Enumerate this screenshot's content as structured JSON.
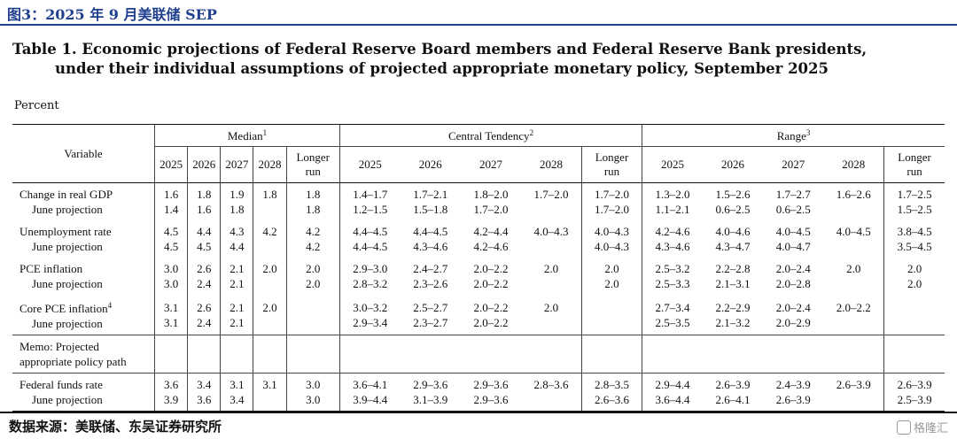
{
  "figure_caption": "图3：2025 年 9 月美联储 SEP",
  "title_line1": "Table 1. Economic projections of Federal Reserve Board members and Federal Reserve Bank presidents,",
  "title_line2": "under their individual assumptions of projected appropriate monetary policy, September 2025",
  "unit_label": "Percent",
  "header": {
    "variable": "Variable",
    "groups": [
      {
        "label": "Median",
        "sup": "1"
      },
      {
        "label": "Central Tendency",
        "sup": "2"
      },
      {
        "label": "Range",
        "sup": "3"
      }
    ],
    "years": [
      "2025",
      "2026",
      "2027",
      "2028"
    ],
    "longer_run_a": "Longer",
    "longer_run_b": "run"
  },
  "rows": [
    {
      "name": "Change in real GDP",
      "sub": "June projection",
      "main_vals": [
        "1.6",
        "1.8",
        "1.9",
        "1.8",
        "1.8",
        "1.4–1.7",
        "1.7–2.1",
        "1.8–2.0",
        "1.7–2.0",
        "1.7–2.0",
        "1.3–2.0",
        "1.5–2.6",
        "1.7–2.7",
        "1.6–2.6",
        "1.7–2.5"
      ],
      "sub_vals": [
        "1.4",
        "1.6",
        "1.8",
        "",
        "1.8",
        "1.2–1.5",
        "1.5–1.8",
        "1.7–2.0",
        "",
        "1.7–2.0",
        "1.1–2.1",
        "0.6–2.5",
        "0.6–2.5",
        "",
        "1.5–2.5"
      ]
    },
    {
      "name": "Unemployment rate",
      "sub": "June projection",
      "main_vals": [
        "4.5",
        "4.4",
        "4.3",
        "4.2",
        "4.2",
        "4.4–4.5",
        "4.4–4.5",
        "4.2–4.4",
        "4.0–4.3",
        "4.0–4.3",
        "4.2–4.6",
        "4.0–4.6",
        "4.0–4.5",
        "4.0–4.5",
        "3.8–4.5"
      ],
      "sub_vals": [
        "4.5",
        "4.5",
        "4.4",
        "",
        "4.2",
        "4.4–4.5",
        "4.3–4.6",
        "4.2–4.6",
        "",
        "4.0–4.3",
        "4.3–4.6",
        "4.3–4.7",
        "4.0–4.7",
        "",
        "3.5–4.5"
      ]
    },
    {
      "name": "PCE inflation",
      "sub": "June projection",
      "main_vals": [
        "3.0",
        "2.6",
        "2.1",
        "2.0",
        "2.0",
        "2.9–3.0",
        "2.4–2.7",
        "2.0–2.2",
        "2.0",
        "2.0",
        "2.5–3.2",
        "2.2–2.8",
        "2.0–2.4",
        "2.0",
        "2.0"
      ],
      "sub_vals": [
        "3.0",
        "2.4",
        "2.1",
        "",
        "2.0",
        "2.8–3.2",
        "2.3–2.6",
        "2.0–2.2",
        "",
        "2.0",
        "2.5–3.3",
        "2.1–3.1",
        "2.0–2.8",
        "",
        "2.0"
      ]
    },
    {
      "name": "Core PCE inflation",
      "name_sup": "4",
      "sub": "June projection",
      "main_vals": [
        "3.1",
        "2.6",
        "2.1",
        "2.0",
        "",
        "3.0–3.2",
        "2.5–2.7",
        "2.0–2.2",
        "2.0",
        "",
        "2.7–3.4",
        "2.2–2.9",
        "2.0–2.4",
        "2.0–2.2",
        ""
      ],
      "sub_vals": [
        "3.1",
        "2.4",
        "2.1",
        "",
        "",
        "2.9–3.4",
        "2.3–2.7",
        "2.0–2.2",
        "",
        "",
        "2.5–3.5",
        "2.1–3.2",
        "2.0–2.9",
        "",
        ""
      ]
    }
  ],
  "memo": {
    "line1": "Memo: Projected",
    "line2": "appropriate policy path"
  },
  "fed_funds": {
    "name": "Federal funds rate",
    "sub": "June projection",
    "main_vals": [
      "3.6",
      "3.4",
      "3.1",
      "3.1",
      "3.0",
      "3.6–4.1",
      "2.9–3.6",
      "2.9–3.6",
      "2.8–3.6",
      "2.8–3.5",
      "2.9–4.4",
      "2.6–3.9",
      "2.4–3.9",
      "2.6–3.9",
      "2.6–3.9"
    ],
    "sub_vals": [
      "3.9",
      "3.6",
      "3.4",
      "",
      "3.0",
      "3.9–4.4",
      "3.1–3.9",
      "2.9–3.6",
      "",
      "2.6–3.6",
      "3.6–4.4",
      "2.6–4.1",
      "2.6–3.9",
      "",
      "2.5–3.9"
    ]
  },
  "source": "数据来源：美联储、东吴证券研究所",
  "watermark": "格隆汇"
}
